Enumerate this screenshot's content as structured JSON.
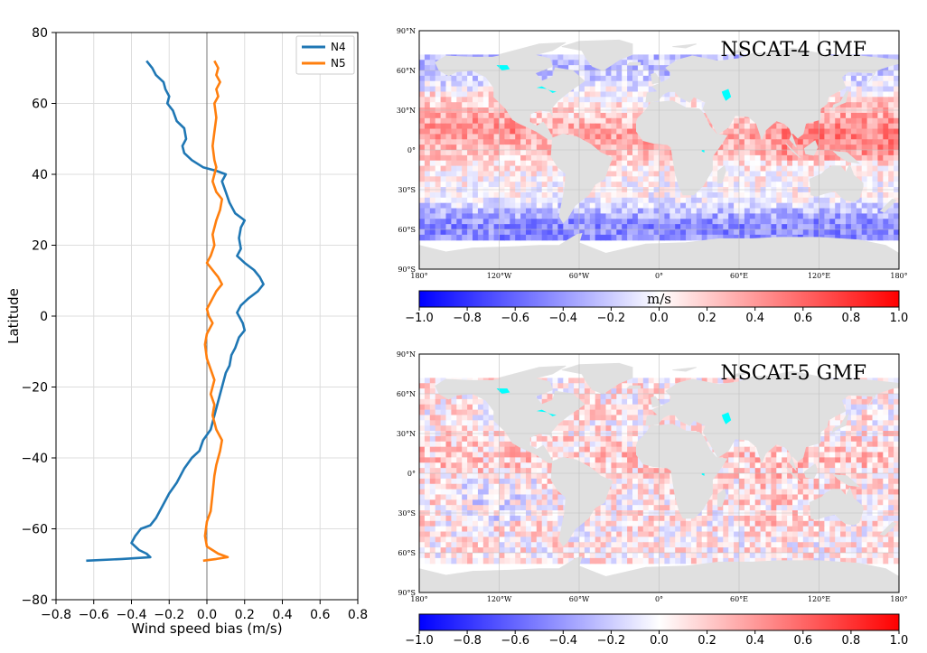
{
  "chart_data": [
    {
      "type": "line",
      "xlabel": "Wind speed bias (m/s)",
      "ylabel": "Latitude",
      "xlim": [
        -0.8,
        0.8
      ],
      "ylim": [
        -80,
        80
      ],
      "xticks": [
        "−0.8",
        "−0.6",
        "−0.4",
        "−0.2",
        "0.0",
        "0.2",
        "0.4",
        "0.6",
        "0.8"
      ],
      "yticks": [
        "−80",
        "−60",
        "−40",
        "−20",
        "0",
        "20",
        "40",
        "60",
        "80"
      ],
      "grid": true,
      "legend_position": "top-right",
      "series": [
        {
          "name": "N4",
          "color": "#1f77b4",
          "points": [
            [
              -0.32,
              72
            ],
            [
              -0.29,
              70
            ],
            [
              -0.27,
              68
            ],
            [
              -0.23,
              66
            ],
            [
              -0.22,
              64
            ],
            [
              -0.2,
              62
            ],
            [
              -0.21,
              60
            ],
            [
              -0.18,
              58
            ],
            [
              -0.16,
              55
            ],
            [
              -0.12,
              53
            ],
            [
              -0.11,
              50
            ],
            [
              -0.13,
              48
            ],
            [
              -0.12,
              46
            ],
            [
              -0.08,
              44
            ],
            [
              -0.02,
              42
            ],
            [
              0.05,
              41
            ],
            [
              0.1,
              40
            ],
            [
              0.08,
              38
            ],
            [
              0.1,
              35
            ],
            [
              0.12,
              32
            ],
            [
              0.15,
              29
            ],
            [
              0.2,
              27
            ],
            [
              0.18,
              25
            ],
            [
              0.17,
              22
            ],
            [
              0.18,
              19
            ],
            [
              0.16,
              17
            ],
            [
              0.2,
              15
            ],
            [
              0.25,
              13
            ],
            [
              0.28,
              11
            ],
            [
              0.3,
              9
            ],
            [
              0.27,
              7
            ],
            [
              0.22,
              5
            ],
            [
              0.18,
              3
            ],
            [
              0.16,
              1
            ],
            [
              0.19,
              -2
            ],
            [
              0.2,
              -4
            ],
            [
              0.17,
              -6
            ],
            [
              0.15,
              -9
            ],
            [
              0.13,
              -11
            ],
            [
              0.12,
              -14
            ],
            [
              0.1,
              -16
            ],
            [
              0.08,
              -20
            ],
            [
              0.06,
              -24
            ],
            [
              0.04,
              -28
            ],
            [
              0.02,
              -32
            ],
            [
              -0.02,
              -35
            ],
            [
              -0.04,
              -38
            ],
            [
              -0.08,
              -40
            ],
            [
              -0.12,
              -43
            ],
            [
              -0.16,
              -47
            ],
            [
              -0.2,
              -50
            ],
            [
              -0.22,
              -52
            ],
            [
              -0.25,
              -55
            ],
            [
              -0.27,
              -57
            ],
            [
              -0.3,
              -59
            ],
            [
              -0.35,
              -60
            ],
            [
              -0.38,
              -62
            ],
            [
              -0.4,
              -64
            ],
            [
              -0.36,
              -66
            ],
            [
              -0.32,
              -67
            ],
            [
              -0.3,
              -68
            ],
            [
              -0.45,
              -68.5
            ],
            [
              -0.64,
              -69
            ]
          ]
        },
        {
          "name": "N5",
          "color": "#ff7f0e",
          "points": [
            [
              0.04,
              72
            ],
            [
              0.06,
              70
            ],
            [
              0.05,
              68
            ],
            [
              0.07,
              66
            ],
            [
              0.05,
              64
            ],
            [
              0.06,
              62
            ],
            [
              0.04,
              60
            ],
            [
              0.05,
              56
            ],
            [
              0.04,
              52
            ],
            [
              0.03,
              48
            ],
            [
              0.04,
              44
            ],
            [
              0.05,
              42
            ],
            [
              0.04,
              40
            ],
            [
              0.03,
              38
            ],
            [
              0.05,
              35
            ],
            [
              0.08,
              33
            ],
            [
              0.07,
              30
            ],
            [
              0.05,
              27
            ],
            [
              0.03,
              23
            ],
            [
              0.04,
              20
            ],
            [
              0.02,
              17
            ],
            [
              0.0,
              15
            ],
            [
              0.03,
              13
            ],
            [
              0.06,
              11
            ],
            [
              0.08,
              9
            ],
            [
              0.05,
              7
            ],
            [
              0.02,
              4
            ],
            [
              0.0,
              2
            ],
            [
              0.01,
              0
            ],
            [
              0.03,
              -2
            ],
            [
              0.0,
              -5
            ],
            [
              -0.01,
              -8
            ],
            [
              0.0,
              -12
            ],
            [
              0.02,
              -15
            ],
            [
              0.04,
              -18
            ],
            [
              0.02,
              -22
            ],
            [
              0.04,
              -25
            ],
            [
              0.03,
              -28
            ],
            [
              0.05,
              -32
            ],
            [
              0.08,
              -35
            ],
            [
              0.07,
              -38
            ],
            [
              0.05,
              -42
            ],
            [
              0.04,
              -45
            ],
            [
              0.03,
              -50
            ],
            [
              0.02,
              -55
            ],
            [
              0.0,
              -58
            ],
            [
              -0.01,
              -62
            ],
            [
              0.0,
              -65
            ],
            [
              0.06,
              -67
            ],
            [
              0.11,
              -68
            ],
            [
              0.05,
              -68.5
            ],
            [
              -0.02,
              -69
            ]
          ]
        }
      ]
    },
    {
      "type": "heatmap",
      "title": "NSCAT-4 GMF",
      "xticks": [
        "180°",
        "120°W",
        "60°W",
        "0°",
        "60°E",
        "120°E",
        "180°"
      ],
      "yticks": [
        "90°N",
        "60°N",
        "30°N",
        "0°",
        "30°S",
        "60°S",
        "90°S"
      ],
      "colorbar": {
        "label": "m/s",
        "range": [
          -1.0,
          1.0
        ],
        "colors": [
          "#0000ff",
          "#ffffff",
          "#ff0000"
        ],
        "ticks": [
          "−1.0",
          "−0.8",
          "−0.6",
          "−0.4",
          "−0.2",
          "0.0",
          "0.2",
          "0.4",
          "0.6",
          "0.8",
          "1.0"
        ]
      },
      "land_color": "#e0e0e0",
      "lake_color": "#00ffff"
    },
    {
      "type": "heatmap",
      "title": "NSCAT-5 GMF",
      "xticks": [
        "180°",
        "120°W",
        "60°W",
        "0°",
        "60°E",
        "120°E",
        "180°"
      ],
      "yticks": [
        "90°N",
        "60°N",
        "30°N",
        "0°",
        "30°S",
        "60°S",
        "90°S"
      ],
      "colorbar": {
        "label": "",
        "range": [
          -1.0,
          1.0
        ],
        "colors": [
          "#0000ff",
          "#ffffff",
          "#ff0000"
        ],
        "ticks": [
          "−1.0",
          "−0.8",
          "−0.6",
          "−0.4",
          "−0.2",
          "0.0",
          "0.2",
          "0.4",
          "0.6",
          "0.8",
          "1.0"
        ]
      },
      "land_color": "#e0e0e0",
      "lake_color": "#00ffff"
    }
  ]
}
